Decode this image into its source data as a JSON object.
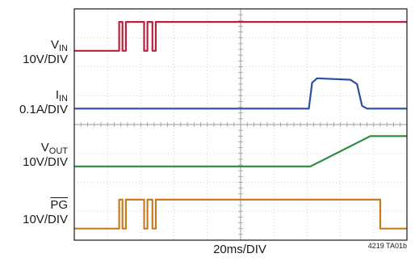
{
  "chart_data": {
    "type": "line",
    "title": "",
    "xlabel": "20ms/DIV",
    "figure_id": "4219 TA01b",
    "x_divisions": 10,
    "y_divisions": 8,
    "grid": true,
    "series": [
      {
        "key": "vin",
        "label_main": "V",
        "label_sub": "IN",
        "label_scale": "10V/DIV",
        "color": "#b8213e",
        "baseline_div": 6.55,
        "points": [
          [
            0,
            0
          ],
          [
            1.35,
            0
          ],
          [
            1.35,
            1
          ],
          [
            1.45,
            1
          ],
          [
            1.45,
            0
          ],
          [
            1.55,
            0
          ],
          [
            1.55,
            1
          ],
          [
            2.1,
            1
          ],
          [
            2.1,
            0
          ],
          [
            2.2,
            0
          ],
          [
            2.2,
            1
          ],
          [
            2.35,
            1
          ],
          [
            2.35,
            0
          ],
          [
            2.45,
            0
          ],
          [
            2.45,
            1
          ],
          [
            10,
            1
          ]
        ]
      },
      {
        "key": "iin",
        "label_main": "I",
        "label_sub": "IN",
        "label_scale": "0.1A/DIV",
        "color": "#2a4fa4",
        "baseline_div": 4.55,
        "points": [
          [
            0,
            0
          ],
          [
            7.05,
            0
          ],
          [
            7.15,
            0.9
          ],
          [
            7.3,
            1.05
          ],
          [
            8.3,
            1.0
          ],
          [
            8.5,
            0.85
          ],
          [
            8.65,
            0.1
          ],
          [
            8.8,
            0
          ],
          [
            10,
            0
          ]
        ]
      },
      {
        "key": "vout",
        "label_main": "V",
        "label_sub": "OUT",
        "label_scale": "10V/DIV",
        "color": "#2a8a3a",
        "baseline_div": 2.55,
        "points": [
          [
            0,
            0
          ],
          [
            7.1,
            0
          ],
          [
            8.9,
            1.05
          ],
          [
            10,
            1.05
          ]
        ]
      },
      {
        "key": "pg",
        "label_main": "PG",
        "label_sub": "",
        "label_scale": "10V/DIV",
        "color": "#c87a1e",
        "baseline_div": 0.4,
        "points": [
          [
            0,
            0
          ],
          [
            1.35,
            0
          ],
          [
            1.35,
            1
          ],
          [
            1.45,
            1
          ],
          [
            1.45,
            0
          ],
          [
            1.55,
            0
          ],
          [
            1.55,
            1
          ],
          [
            2.1,
            1
          ],
          [
            2.1,
            0
          ],
          [
            2.2,
            0
          ],
          [
            2.2,
            1
          ],
          [
            2.35,
            1
          ],
          [
            2.35,
            0
          ],
          [
            2.45,
            0
          ],
          [
            2.45,
            1
          ],
          [
            9.2,
            1
          ],
          [
            9.2,
            0
          ],
          [
            10,
            0
          ]
        ]
      }
    ]
  },
  "colors": {
    "frame": "#1a1a1a",
    "grid": "#c8c8c8",
    "axis": "#9a9a9a"
  }
}
